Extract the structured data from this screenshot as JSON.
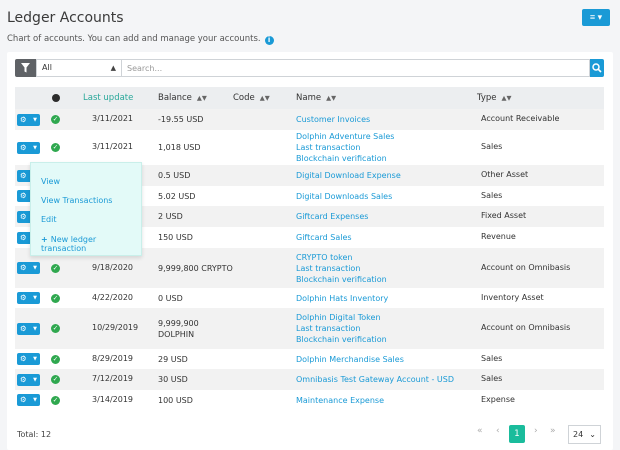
{
  "header": {
    "title": "Ledger Accounts",
    "subtitle": "Chart of accounts. You can add and manage your accounts.",
    "info_icon": "i",
    "menu_icon": "≡ ▾"
  },
  "filter": {
    "selected": "All",
    "search_placeholder": "Search..."
  },
  "table": {
    "columns": {
      "last_update": "Last update",
      "balance": "Balance",
      "code": "Code",
      "name": "Name",
      "type": "Type"
    },
    "rows": [
      {
        "date": "3/11/2021",
        "balance": [
          "-19.55 USD"
        ],
        "name": [
          "Customer Invoices"
        ],
        "type": "Account Receivable"
      },
      {
        "date": "3/11/2021",
        "balance": [
          "1,018 USD"
        ],
        "name": [
          "Dolphin Adventure Sales",
          "Last transaction",
          "Blockchain verification"
        ],
        "type": "Sales"
      },
      {
        "date": "",
        "balance": [
          "0.5 USD"
        ],
        "name": [
          "Digital Download Expense"
        ],
        "type": "Other Asset"
      },
      {
        "date": "",
        "balance": [
          "5.02 USD"
        ],
        "name": [
          "Digital Downloads Sales"
        ],
        "type": "Sales"
      },
      {
        "date": "",
        "balance": [
          "2 USD"
        ],
        "name": [
          "Giftcard Expenses"
        ],
        "type": "Fixed Asset"
      },
      {
        "date": "",
        "balance": [
          "150 USD"
        ],
        "name": [
          "Giftcard Sales"
        ],
        "type": "Revenue"
      },
      {
        "date": "9/18/2020",
        "balance": [
          "9,999,800 CRYPTO"
        ],
        "name": [
          "CRYPTO token",
          "Last transaction",
          "Blockchain verification"
        ],
        "type": "Account on Omnibasis"
      },
      {
        "date": "4/22/2020",
        "balance": [
          "0 USD"
        ],
        "name": [
          "Dolphin Hats Inventory"
        ],
        "type": "Inventory Asset"
      },
      {
        "date": "10/29/2019",
        "balance": [
          "9,999,900",
          "DOLPHIN"
        ],
        "name": [
          "Dolphin Digital Token",
          "Last transaction",
          "Blockchain verification"
        ],
        "type": "Account on Omnibasis"
      },
      {
        "date": "8/29/2019",
        "balance": [
          "29 USD"
        ],
        "name": [
          "Dolphin Merchandise Sales"
        ],
        "type": "Sales"
      },
      {
        "date": "7/12/2019",
        "balance": [
          "30 USD"
        ],
        "name": [
          "Omnibasis Test Gateway Account - USD"
        ],
        "type": "Sales"
      },
      {
        "date": "3/14/2019",
        "balance": [
          "100 USD"
        ],
        "name": [
          "Maintenance Expense"
        ],
        "type": "Expense"
      }
    ]
  },
  "dropdown": {
    "items": [
      "View",
      "View Transactions",
      "Edit"
    ],
    "new_label": "New ledger transaction"
  },
  "footer": {
    "total": "Total: 12",
    "current_page": "1",
    "page_size": "24"
  },
  "colors": {
    "accent": "#1a9ad6",
    "active_page": "#1abc9c",
    "check": "#2fa84f",
    "dropdown_bg": "#e3faf8"
  }
}
